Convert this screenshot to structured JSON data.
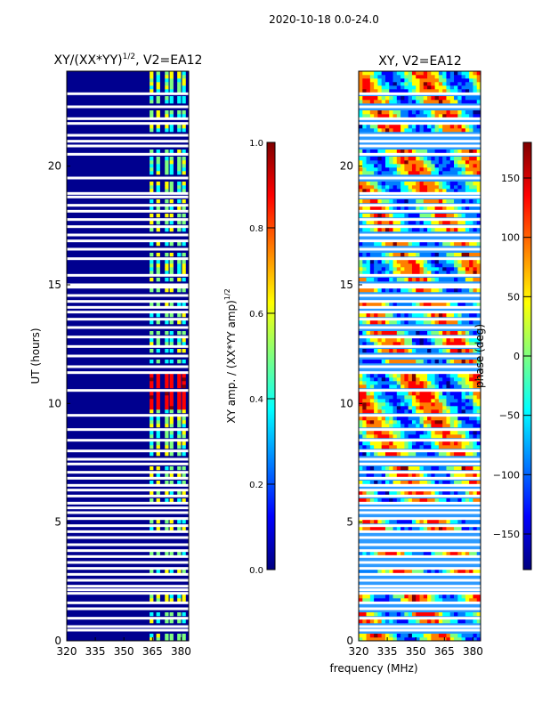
{
  "figure": {
    "suptitle": "2020-10-18 0.0-24.0",
    "shared_xlabel": "frequency (MHz)"
  },
  "chart_data": [
    {
      "type": "heatmap",
      "title_text": "XY/(XX*YY)",
      "title_sup": "1/2",
      "title_suffix": ", V2=EA12",
      "ylabel": "UT (hours)",
      "xlim": [
        320,
        384
      ],
      "ylim": [
        0,
        24
      ],
      "xticks": [
        320,
        335,
        350,
        365,
        380
      ],
      "yticks": [
        0,
        5,
        10,
        15,
        20
      ],
      "colorbar": {
        "label": "XY amp. / (XX*YY amp)",
        "label_sup": "1/2",
        "range": [
          0.0,
          1.0
        ],
        "ticks": [
          "0.0",
          "0.2",
          "0.4",
          "0.6",
          "0.8",
          "1.0"
        ],
        "tick_values": [
          0.0,
          0.2,
          0.4,
          0.6,
          0.8,
          1.0
        ]
      }
    },
    {
      "type": "heatmap",
      "title_text": "XY, V2=EA12",
      "ylabel": "",
      "xlim": [
        320,
        384
      ],
      "ylim": [
        0,
        24
      ],
      "xticks": [
        320,
        335,
        350,
        365,
        380
      ],
      "yticks": [
        0,
        5,
        10,
        15,
        20
      ],
      "colorbar": {
        "label": "phase (deg)",
        "range": [
          -180,
          180
        ],
        "ticks": [
          "−150",
          "−100",
          "−50",
          "0",
          "50",
          "100",
          "150"
        ],
        "tick_values": [
          -150,
          -100,
          -50,
          0,
          50,
          100,
          150
        ]
      }
    }
  ],
  "colormap": {
    "name": "jet",
    "stops": [
      "#00007f",
      "#0000ff",
      "#007fff",
      "#00ffff",
      "#7fff7f",
      "#ffff00",
      "#ff7f00",
      "#ff0000",
      "#7f0000"
    ]
  },
  "flagged_ut_hours": [
    0.45,
    0.6,
    0.95,
    1.35,
    1.6,
    2.0,
    2.15,
    2.3,
    2.55,
    2.8,
    3.05,
    3.3,
    3.55,
    3.8,
    4.05,
    4.35,
    4.6,
    4.85,
    5.15,
    5.4,
    5.6,
    5.8,
    6.1,
    6.35,
    6.55,
    6.85,
    7.1,
    7.45,
    7.65,
    8.0,
    8.45,
    8.9,
    9.5,
    10.55,
    11.3,
    11.55,
    12.0,
    12.4,
    12.8,
    13.2,
    13.55,
    13.85,
    14.05,
    14.3,
    14.55,
    14.9,
    15.0,
    15.4,
    16.1,
    16.5,
    16.85,
    17.1,
    17.45,
    17.75,
    18.1,
    18.35,
    18.7,
    18.85,
    19.5,
    20.5,
    20.85,
    21.05,
    21.3,
    21.8,
    22.0,
    22.5,
    23.05
  ]
}
